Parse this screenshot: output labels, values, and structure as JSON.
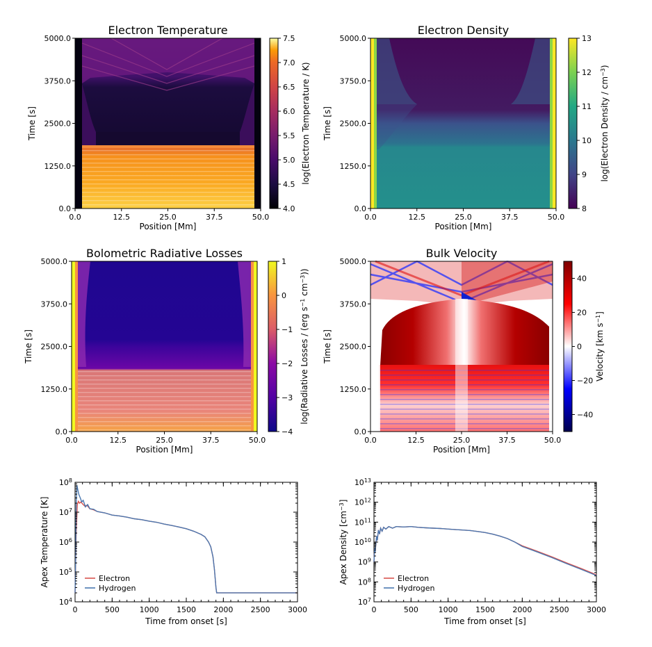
{
  "chart_data": [
    {
      "type": "heatmap",
      "title": "Electron Temperature",
      "xlabel": "Position [Mm]",
      "ylabel": "Time [s]",
      "xlim": [
        0.0,
        50.0
      ],
      "ylim": [
        0.0,
        5000.0
      ],
      "xticks": [
        "0.0",
        "12.5",
        "25.0",
        "37.5",
        "50.0"
      ],
      "yticks": [
        "0.0",
        "1250.0",
        "2500.0",
        "3750.0",
        "5000.0"
      ],
      "colorbar": {
        "label": "log(Electron Temperature / K)",
        "colormap": "inferno",
        "range": [
          4.0,
          7.5
        ],
        "ticks": [
          "4.0",
          "4.5",
          "5.0",
          "5.5",
          "6.0",
          "6.5",
          "7.0",
          "7.5"
        ]
      }
    },
    {
      "type": "heatmap",
      "title": "Electron Density",
      "xlabel": "Position [Mm]",
      "ylabel": "Time [s]",
      "xlim": [
        0.0,
        50.0
      ],
      "ylim": [
        0.0,
        5000.0
      ],
      "xticks": [
        "0.0",
        "12.5",
        "25.0",
        "37.5",
        "50.0"
      ],
      "yticks": [
        "0.0",
        "1250.0",
        "2500.0",
        "3750.0",
        "5000.0"
      ],
      "colorbar": {
        "label": "log(Electron Density / cm",
        "label_sup": "−3",
        "label_end": ")",
        "colormap": "viridis",
        "range": [
          8,
          13
        ],
        "ticks": [
          "8",
          "9",
          "10",
          "11",
          "12",
          "13"
        ]
      }
    },
    {
      "type": "heatmap",
      "title": "Bolometric Radiative Losses",
      "xlabel": "Position [Mm]",
      "ylabel": "Time [s]",
      "xlim": [
        0.0,
        50.0
      ],
      "ylim": [
        0.0,
        5000.0
      ],
      "xticks": [
        "0.0",
        "12.5",
        "25.0",
        "37.5",
        "50.0"
      ],
      "yticks": [
        "0.0",
        "1250.0",
        "2500.0",
        "3750.0",
        "5000.0"
      ],
      "colorbar": {
        "label": "log(Radiative Losses / (erg s",
        "label_sup": "−1",
        "label_mid": " cm",
        "label_sup2": "−3",
        "label_end": "))",
        "colormap": "plasma",
        "range": [
          -4,
          1
        ],
        "ticks": [
          "−4",
          "−3",
          "−2",
          "−1",
          "0",
          "1"
        ]
      }
    },
    {
      "type": "heatmap",
      "title": "Bulk Velocity",
      "xlabel": "Position [Mm]",
      "ylabel": "Time [s]",
      "xlim": [
        0.0,
        50.0
      ],
      "ylim": [
        0.0,
        5000.0
      ],
      "xticks": [
        "0.0",
        "12.5",
        "25.0",
        "37.5",
        "50.0"
      ],
      "yticks": [
        "0.0",
        "1250.0",
        "2500.0",
        "3750.0",
        "5000.0"
      ],
      "colorbar": {
        "label": "Velocity [km s",
        "label_sup": "−1",
        "label_end": "]",
        "colormap": "seismic",
        "range": [
          -50,
          50
        ],
        "ticks": [
          "40",
          "20",
          "0",
          "−20",
          "−40"
        ],
        "tick_values": [
          40,
          20,
          0,
          -20,
          -40
        ]
      }
    },
    {
      "type": "line",
      "xlabel": "Time from onset [s]",
      "ylabel": "Apex Temperature [K]",
      "xlim": [
        0,
        3000
      ],
      "ylim": [
        10000,
        100000000
      ],
      "yscale": "log",
      "xticks": [
        "0",
        "500",
        "1000",
        "1500",
        "2000",
        "2500",
        "3000"
      ],
      "yticks": [
        {
          "base": "10",
          "exp": "4"
        },
        {
          "base": "10",
          "exp": "5"
        },
        {
          "base": "10",
          "exp": "6"
        },
        {
          "base": "10",
          "exp": "7"
        },
        {
          "base": "10",
          "exp": "8"
        }
      ],
      "legend": "bottom-left",
      "series": [
        {
          "name": "Electron",
          "color": "#d9534f",
          "x": [
            0,
            15,
            30,
            45,
            60,
            80,
            100,
            130,
            160,
            200,
            250,
            300,
            400,
            500,
            600,
            700,
            800,
            900,
            1000,
            1100,
            1200,
            1300,
            1400,
            1500,
            1600,
            1700,
            1750,
            1800,
            1830,
            1860,
            1880,
            1900,
            1910,
            1920,
            2000,
            2500,
            3000
          ],
          "y": [
            20000,
            2000000,
            18000000,
            23000000,
            20000000,
            22000000,
            19000000,
            16000000,
            17000000,
            13000000,
            12000000,
            10500000,
            9500000,
            8000000,
            7500000,
            6800000,
            6000000,
            5600000,
            5000000,
            4600000,
            4000000,
            3600000,
            3200000,
            2800000,
            2300000,
            1800000,
            1500000,
            1000000,
            700000,
            320000,
            120000,
            30000,
            20000,
            20000,
            20000,
            20000,
            20000
          ]
        },
        {
          "name": "Hydrogen",
          "color": "#4a78b0",
          "x": [
            0,
            8,
            15,
            25,
            35,
            50,
            70,
            90,
            110,
            140,
            170,
            200,
            250,
            300,
            400,
            500,
            600,
            700,
            800,
            900,
            1000,
            1100,
            1200,
            1300,
            1400,
            1500,
            1600,
            1700,
            1750,
            1800,
            1830,
            1860,
            1880,
            1900,
            1910,
            1920,
            2000,
            2500,
            3000
          ],
          "y": [
            20000,
            300000,
            20000000,
            80000000,
            60000000,
            40000000,
            30000000,
            22000000,
            25000000,
            15000000,
            18000000,
            13000000,
            12500000,
            10500000,
            9500000,
            8000000,
            7500000,
            6800000,
            6000000,
            5600000,
            5000000,
            4600000,
            4000000,
            3600000,
            3200000,
            2800000,
            2300000,
            1800000,
            1500000,
            1000000,
            700000,
            320000,
            120000,
            30000,
            20000,
            20000,
            20000,
            20000,
            20000
          ]
        }
      ]
    },
    {
      "type": "line",
      "xlabel": "Time from onset [s]",
      "ylabel": "Apex Density [cm",
      "ylabel_sup": "−3",
      "ylabel_end": "]",
      "xlim": [
        0,
        3000
      ],
      "ylim": [
        10000000,
        10000000000000
      ],
      "yscale": "log",
      "xticks": [
        "0",
        "500",
        "1000",
        "1500",
        "2000",
        "2500",
        "3000"
      ],
      "yticks": [
        {
          "base": "10",
          "exp": "7"
        },
        {
          "base": "10",
          "exp": "8"
        },
        {
          "base": "10",
          "exp": "9"
        },
        {
          "base": "10",
          "exp": "10"
        },
        {
          "base": "10",
          "exp": "11"
        },
        {
          "base": "10",
          "exp": "12"
        },
        {
          "base": "10",
          "exp": "13"
        }
      ],
      "legend": "bottom-left",
      "series": [
        {
          "name": "Electron",
          "color": "#d9534f",
          "x": [
            0,
            8,
            15,
            25,
            35,
            45,
            60,
            75,
            90,
            110,
            130,
            160,
            200,
            250,
            300,
            400,
            500,
            600,
            700,
            800,
            900,
            1000,
            1100,
            1200,
            1300,
            1400,
            1500,
            1600,
            1700,
            1800,
            1900,
            2000,
            2200,
            2400,
            2600,
            2800,
            3000
          ],
          "y": [
            1000000000,
            5000000000,
            3000000000,
            8000000000,
            20000000000,
            12000000000,
            40000000000,
            25000000000,
            50000000000,
            35000000000,
            55000000000,
            45000000000,
            60000000000,
            50000000000,
            60000000000,
            57000000000,
            60000000000,
            55000000000,
            52000000000,
            50000000000,
            48000000000,
            45000000000,
            42000000000,
            40000000000,
            38000000000,
            34000000000,
            30000000000,
            25000000000,
            20000000000,
            15000000000,
            10000000000,
            6500000000,
            3500000000,
            1800000000,
            900000000,
            460000000,
            230000000
          ]
        },
        {
          "name": "Hydrogen",
          "color": "#4a78b0",
          "x": [
            0,
            8,
            15,
            25,
            35,
            45,
            60,
            75,
            90,
            110,
            130,
            160,
            200,
            250,
            300,
            400,
            500,
            600,
            700,
            800,
            900,
            1000,
            1100,
            1200,
            1300,
            1400,
            1500,
            1600,
            1700,
            1800,
            1900,
            2000,
            2200,
            2400,
            2600,
            2800,
            3000
          ],
          "y": [
            1000000000,
            5000000000,
            3000000000,
            8000000000,
            20000000000,
            12000000000,
            40000000000,
            25000000000,
            50000000000,
            35000000000,
            55000000000,
            45000000000,
            60000000000,
            50000000000,
            60000000000,
            57000000000,
            60000000000,
            55000000000,
            52000000000,
            50000000000,
            48000000000,
            45000000000,
            42000000000,
            40000000000,
            38000000000,
            34000000000,
            30000000000,
            25000000000,
            20000000000,
            15000000000,
            10000000000,
            6000000000,
            3200000000,
            1650000000,
            820000000,
            420000000,
            210000000
          ]
        }
      ]
    }
  ]
}
